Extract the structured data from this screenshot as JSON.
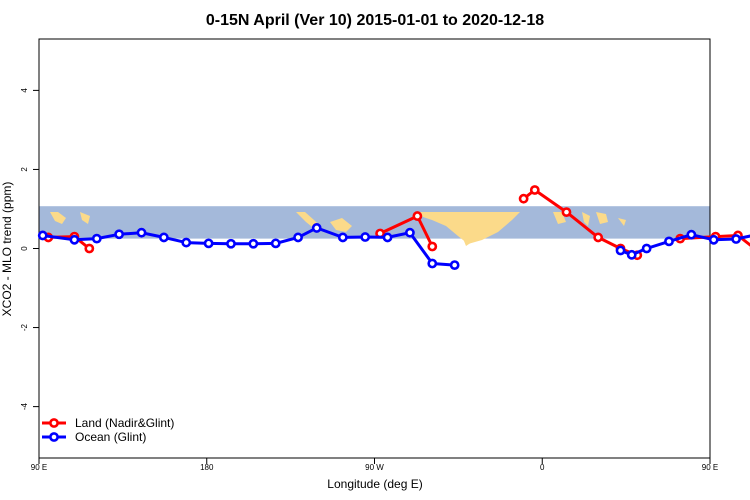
{
  "chart_data": {
    "type": "line",
    "title": "0-15N April (Ver 10)   2015-01-01 to 2020-12-18",
    "xlabel": "Longitude (deg E)",
    "ylabel": "XCO2 - MLO trend (ppm)",
    "xlim": [
      90,
      450
    ],
    "ylim": [
      -5.3,
      5.3
    ],
    "x_ticks": [
      {
        "value": 90,
        "label": "90 E"
      },
      {
        "value": 180,
        "label": "180"
      },
      {
        "value": 270,
        "label": "90 W"
      },
      {
        "value": 360,
        "label": "0"
      },
      {
        "value": 450,
        "label": "90 E"
      },
      {
        "value": 540,
        "label": "180"
      }
    ],
    "y_ticks": [
      {
        "value": -4,
        "label": "-4"
      },
      {
        "value": -2,
        "label": "-2"
      },
      {
        "value": 0,
        "label": "0"
      },
      {
        "value": 2,
        "label": "2"
      },
      {
        "value": 4,
        "label": "4"
      }
    ],
    "map_band": {
      "lat_range": [
        0,
        15
      ],
      "ymin": 0.25,
      "ymax": 1.07,
      "ocean_color": "#A4B9DA",
      "land_color": "#FBDA8A"
    },
    "legend": {
      "position": "bottom-left"
    },
    "series": [
      {
        "name": "Land (Nadir&Glint)",
        "color": "#FF0000",
        "segments": [
          [
            [
              95,
              0.28
            ],
            [
              109,
              0.3
            ],
            [
              117,
              0.0
            ]
          ],
          [
            [
              273,
              0.38
            ],
            [
              293,
              0.82
            ],
            [
              301,
              0.05
            ]
          ],
          [
            [
              350,
              1.26
            ],
            [
              356,
              1.48
            ],
            [
              373,
              0.92
            ],
            [
              390,
              0.28
            ],
            [
              402,
              0.0
            ],
            [
              411,
              -0.17
            ]
          ],
          [
            [
              434,
              0.25
            ],
            [
              453,
              0.3
            ],
            [
              465,
              0.33
            ],
            [
              474,
              0.0
            ]
          ]
        ]
      },
      {
        "name": "Ocean (Glint)",
        "color": "#0000FF",
        "segments": [
          [
            [
              92,
              0.33
            ],
            [
              109,
              0.22
            ],
            [
              121,
              0.25
            ],
            [
              133,
              0.36
            ],
            [
              145,
              0.4
            ],
            [
              157,
              0.28
            ],
            [
              169,
              0.15
            ],
            [
              181,
              0.13
            ],
            [
              193,
              0.12
            ],
            [
              205,
              0.12
            ],
            [
              217,
              0.13
            ],
            [
              229,
              0.28
            ],
            [
              239,
              0.52
            ],
            [
              253,
              0.28
            ],
            [
              265,
              0.29
            ],
            [
              277,
              0.28
            ],
            [
              289,
              0.4
            ],
            [
              301,
              -0.38
            ],
            [
              313,
              -0.42
            ]
          ],
          [
            [
              402,
              -0.05
            ],
            [
              408,
              -0.16
            ],
            [
              416,
              0.0
            ],
            [
              428,
              0.18
            ],
            [
              440,
              0.35
            ],
            [
              452,
              0.22
            ],
            [
              464,
              0.24
            ],
            [
              476,
              0.36
            ],
            [
              488,
              0.41
            ],
            [
              500,
              0.28
            ]
          ]
        ]
      }
    ]
  }
}
